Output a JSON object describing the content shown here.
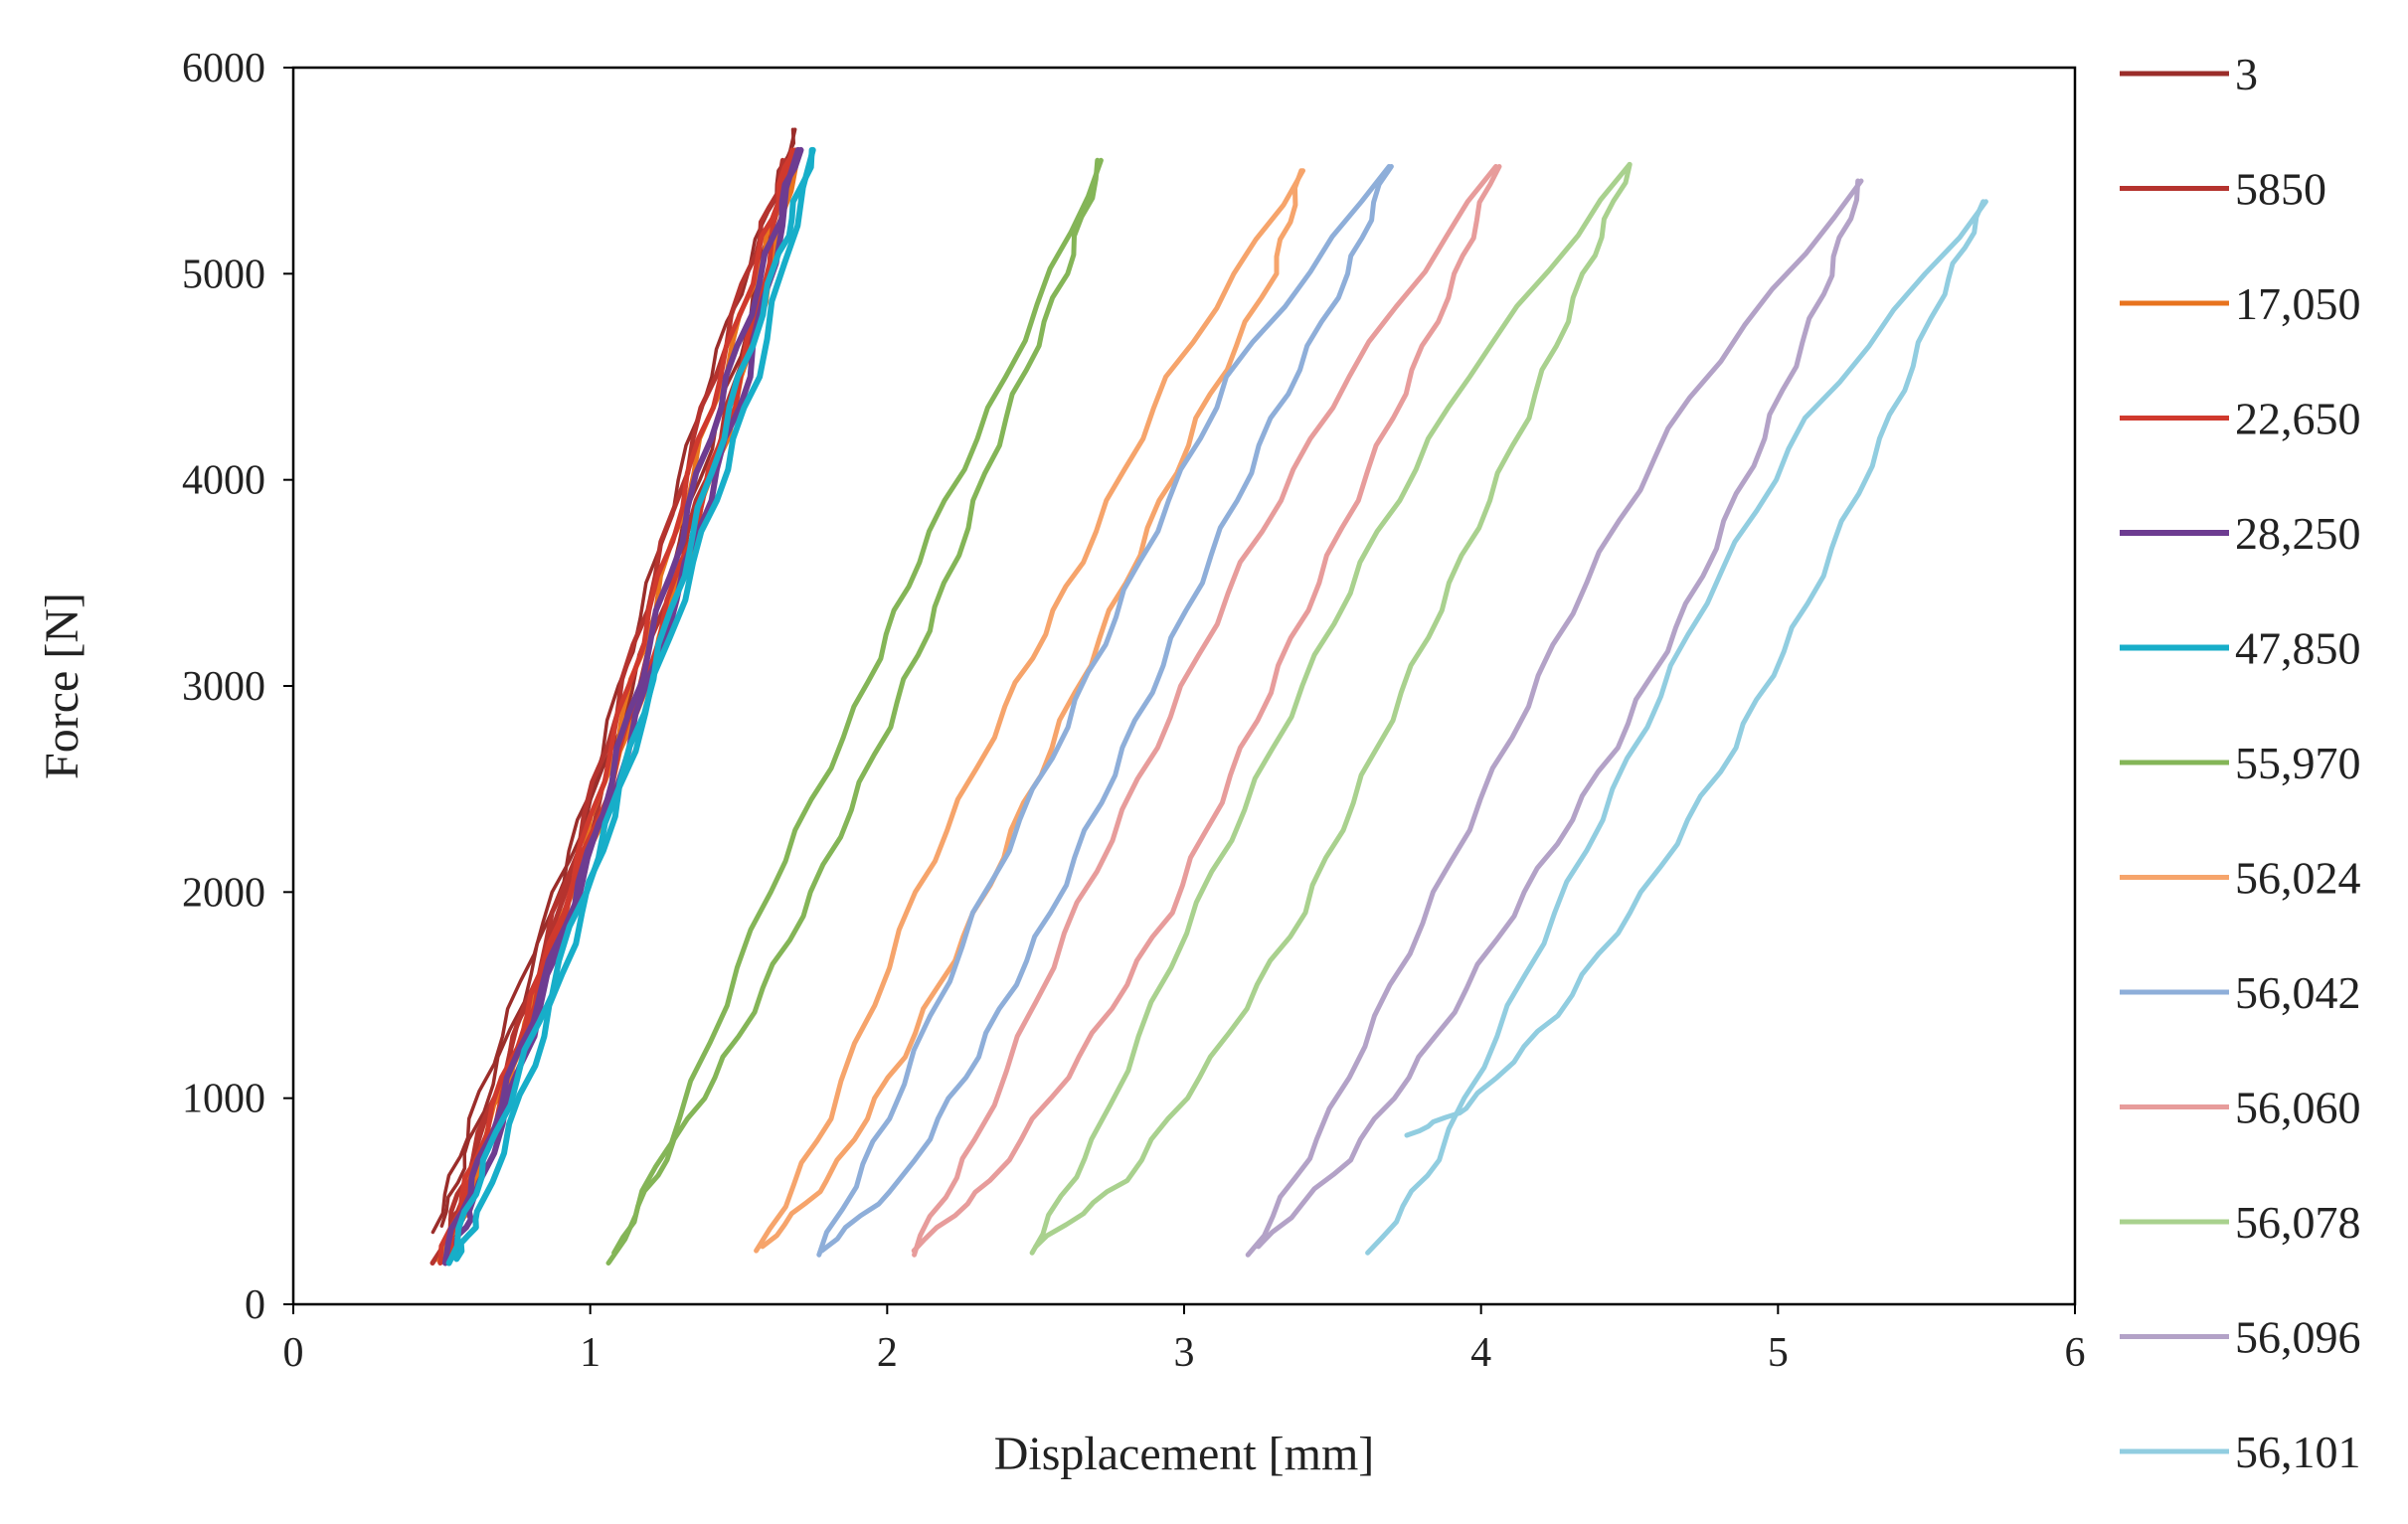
{
  "chart_data": {
    "type": "line",
    "title": "",
    "xlabel": "Displacement [mm]",
    "ylabel": "Force [N]",
    "xlim": [
      0,
      6
    ],
    "ylim": [
      0,
      6000
    ],
    "xticks": [
      0,
      1,
      2,
      3,
      4,
      5,
      6
    ],
    "yticks": [
      0,
      1000,
      2000,
      3000,
      4000,
      5000,
      6000
    ],
    "xtick_labels": [
      "0",
      "1",
      "2",
      "3",
      "4",
      "5",
      "6"
    ],
    "ytick_labels": [
      "0",
      "1000",
      "2000",
      "3000",
      "4000",
      "5000",
      "6000"
    ],
    "grid": false,
    "legend_position": "right",
    "series": [
      {
        "name": "3",
        "color": "#9b2d2a",
        "width": 3.5,
        "loading": [
          [
            0.47,
            350
          ],
          [
            0.6,
            900
          ],
          [
            0.8,
            1700
          ],
          [
            1.05,
            2600
          ],
          [
            1.3,
            3700
          ],
          [
            1.5,
            4600
          ],
          [
            1.69,
            5700
          ]
        ],
        "unloading": [
          [
            1.69,
            5700
          ],
          [
            1.6,
            5300
          ],
          [
            1.4,
            4500
          ],
          [
            1.2,
            3500
          ],
          [
            1.0,
            2500
          ],
          [
            0.8,
            1600
          ],
          [
            0.6,
            800
          ],
          [
            0.5,
            380
          ]
        ]
      },
      {
        "name": "5850",
        "color": "#b5332e",
        "width": 5,
        "loading": [
          [
            0.48,
            200
          ],
          [
            0.6,
            700
          ],
          [
            0.8,
            1500
          ],
          [
            1.05,
            2500
          ],
          [
            1.3,
            3600
          ],
          [
            1.5,
            4500
          ],
          [
            1.66,
            5550
          ]
        ],
        "unloading": [
          [
            1.66,
            5550
          ],
          [
            1.55,
            5100
          ],
          [
            1.35,
            4200
          ],
          [
            1.15,
            3200
          ],
          [
            0.95,
            2200
          ],
          [
            0.75,
            1300
          ],
          [
            0.55,
            450
          ],
          [
            0.5,
            220
          ]
        ]
      },
      {
        "name": "17,050",
        "color": "#e8731e",
        "width": 5,
        "loading": [
          [
            0.5,
            210
          ],
          [
            0.62,
            700
          ],
          [
            0.82,
            1500
          ],
          [
            1.07,
            2500
          ],
          [
            1.32,
            3600
          ],
          [
            1.52,
            4500
          ],
          [
            1.7,
            5580
          ]
        ],
        "unloading": [
          [
            1.7,
            5580
          ],
          [
            1.58,
            5100
          ],
          [
            1.38,
            4200
          ],
          [
            1.18,
            3200
          ],
          [
            0.98,
            2200
          ],
          [
            0.78,
            1300
          ],
          [
            0.58,
            450
          ],
          [
            0.52,
            230
          ]
        ]
      },
      {
        "name": "22,650",
        "color": "#d0392d",
        "width": 5,
        "loading": [
          [
            0.49,
            200
          ],
          [
            0.61,
            700
          ],
          [
            0.81,
            1500
          ],
          [
            1.06,
            2500
          ],
          [
            1.31,
            3600
          ],
          [
            1.51,
            4500
          ],
          [
            1.68,
            5600
          ]
        ],
        "unloading": [
          [
            1.68,
            5600
          ],
          [
            1.57,
            5100
          ],
          [
            1.37,
            4200
          ],
          [
            1.17,
            3200
          ],
          [
            0.97,
            2200
          ],
          [
            0.77,
            1300
          ],
          [
            0.57,
            450
          ],
          [
            0.51,
            220
          ]
        ]
      },
      {
        "name": "28,250",
        "color": "#6d3c91",
        "width": 6,
        "loading": [
          [
            0.5,
            200
          ],
          [
            0.63,
            700
          ],
          [
            0.83,
            1500
          ],
          [
            1.08,
            2500
          ],
          [
            1.33,
            3600
          ],
          [
            1.53,
            4500
          ],
          [
            1.7,
            5600
          ]
        ],
        "unloading": [
          [
            1.7,
            5600
          ],
          [
            1.6,
            5100
          ],
          [
            1.4,
            4200
          ],
          [
            1.2,
            3200
          ],
          [
            1.0,
            2200
          ],
          [
            0.8,
            1300
          ],
          [
            0.6,
            450
          ],
          [
            0.53,
            220
          ]
        ]
      },
      {
        "name": "47,850",
        "color": "#17aec9",
        "width": 6,
        "loading": [
          [
            0.52,
            200
          ],
          [
            0.65,
            700
          ],
          [
            0.86,
            1500
          ],
          [
            1.1,
            2500
          ],
          [
            1.35,
            3600
          ],
          [
            1.56,
            4500
          ],
          [
            1.75,
            5600
          ]
        ],
        "unloading": [
          [
            1.75,
            5600
          ],
          [
            1.64,
            5100
          ],
          [
            1.44,
            4200
          ],
          [
            1.24,
            3200
          ],
          [
            1.04,
            2200
          ],
          [
            0.84,
            1300
          ],
          [
            0.63,
            450
          ],
          [
            0.55,
            220
          ]
        ]
      },
      {
        "name": "55,970",
        "color": "#84b557",
        "width": 5,
        "loading": [
          [
            1.07,
            200
          ],
          [
            1.3,
            900
          ],
          [
            1.6,
            2000
          ],
          [
            1.9,
            2900
          ],
          [
            2.1,
            3600
          ],
          [
            2.4,
            4500
          ],
          [
            2.72,
            5550
          ]
        ],
        "unloading": [
          [
            2.72,
            5550
          ],
          [
            2.6,
            5000
          ],
          [
            2.4,
            4300
          ],
          [
            2.2,
            3500
          ],
          [
            2.0,
            2800
          ],
          [
            1.75,
            2000
          ],
          [
            1.5,
            1300
          ],
          [
            1.25,
            700
          ],
          [
            1.08,
            250
          ]
        ]
      },
      {
        "name": "56,024",
        "color": "#f6a46b",
        "width": 5,
        "loading": [
          [
            1.57,
            260
          ],
          [
            1.8,
            900
          ],
          [
            2.1,
            2000
          ],
          [
            2.4,
            2900
          ],
          [
            2.65,
            3600
          ],
          [
            2.95,
            4500
          ],
          [
            3.4,
            5500
          ]
        ],
        "unloading": [
          [
            3.4,
            5500
          ],
          [
            3.3,
            5000
          ],
          [
            3.05,
            4300
          ],
          [
            2.8,
            3500
          ],
          [
            2.55,
            2700
          ],
          [
            2.3,
            1900
          ],
          [
            2.05,
            1200
          ],
          [
            1.8,
            600
          ],
          [
            1.58,
            280
          ]
        ]
      },
      {
        "name": "56,042",
        "color": "#8eaed9",
        "width": 5,
        "loading": [
          [
            1.77,
            240
          ],
          [
            2.0,
            900
          ],
          [
            2.3,
            1900
          ],
          [
            2.6,
            2800
          ],
          [
            2.85,
            3600
          ],
          [
            3.15,
            4500
          ],
          [
            3.69,
            5520
          ]
        ],
        "unloading": [
          [
            3.69,
            5520
          ],
          [
            3.55,
            5000
          ],
          [
            3.3,
            4300
          ],
          [
            3.05,
            3500
          ],
          [
            2.8,
            2700
          ],
          [
            2.55,
            1900
          ],
          [
            2.3,
            1200
          ],
          [
            2.05,
            600
          ],
          [
            1.78,
            260
          ]
        ]
      },
      {
        "name": "56,060",
        "color": "#e79c9b",
        "width": 5,
        "loading": [
          [
            2.08,
            240
          ],
          [
            2.3,
            800
          ],
          [
            2.6,
            1800
          ],
          [
            2.9,
            2700
          ],
          [
            3.2,
            3600
          ],
          [
            3.55,
            4500
          ],
          [
            4.05,
            5520
          ]
        ],
        "unloading": [
          [
            4.05,
            5520
          ],
          [
            3.92,
            5000
          ],
          [
            3.7,
            4300
          ],
          [
            3.45,
            3500
          ],
          [
            3.2,
            2700
          ],
          [
            2.95,
            1900
          ],
          [
            2.65,
            1200
          ],
          [
            2.35,
            600
          ],
          [
            2.09,
            260
          ]
        ]
      },
      {
        "name": "56,078",
        "color": "#a9d18e",
        "width": 5,
        "loading": [
          [
            2.48,
            250
          ],
          [
            2.7,
            800
          ],
          [
            3.0,
            1800
          ],
          [
            3.3,
            2700
          ],
          [
            3.6,
            3600
          ],
          [
            3.95,
            4500
          ],
          [
            4.5,
            5530
          ]
        ],
        "unloading": [
          [
            4.5,
            5530
          ],
          [
            4.35,
            5000
          ],
          [
            4.15,
            4300
          ],
          [
            3.9,
            3500
          ],
          [
            3.65,
            2700
          ],
          [
            3.4,
            1900
          ],
          [
            3.1,
            1200
          ],
          [
            2.8,
            600
          ],
          [
            2.5,
            280
          ]
        ]
      },
      {
        "name": "56,096",
        "color": "#b3a2c7",
        "width": 5,
        "loading": [
          [
            3.22,
            240
          ],
          [
            3.45,
            800
          ],
          [
            3.75,
            1700
          ],
          [
            4.05,
            2600
          ],
          [
            4.35,
            3500
          ],
          [
            4.7,
            4400
          ],
          [
            5.28,
            5450
          ]
        ],
        "unloading": [
          [
            5.28,
            5450
          ],
          [
            5.15,
            4900
          ],
          [
            4.95,
            4200
          ],
          [
            4.7,
            3400
          ],
          [
            4.45,
            2700
          ],
          [
            4.15,
            2000
          ],
          [
            3.85,
            1300
          ],
          [
            3.55,
            700
          ],
          [
            3.25,
            280
          ]
        ]
      },
      {
        "name": "56,101",
        "color": "#91cde0",
        "width": 5,
        "loading": [
          [
            3.63,
            250
          ],
          [
            3.85,
            700
          ],
          [
            4.15,
            1600
          ],
          [
            4.45,
            2500
          ],
          [
            4.75,
            3400
          ],
          [
            5.1,
            4300
          ],
          [
            5.7,
            5350
          ]
        ],
        "unloading": [
          [
            5.7,
            5350
          ],
          [
            5.55,
            4900
          ],
          [
            5.35,
            4200
          ],
          [
            5.1,
            3400
          ],
          [
            4.85,
            2700
          ],
          [
            4.55,
            2000
          ],
          [
            4.25,
            1400
          ],
          [
            3.95,
            950
          ],
          [
            3.75,
            820
          ]
        ]
      }
    ]
  }
}
